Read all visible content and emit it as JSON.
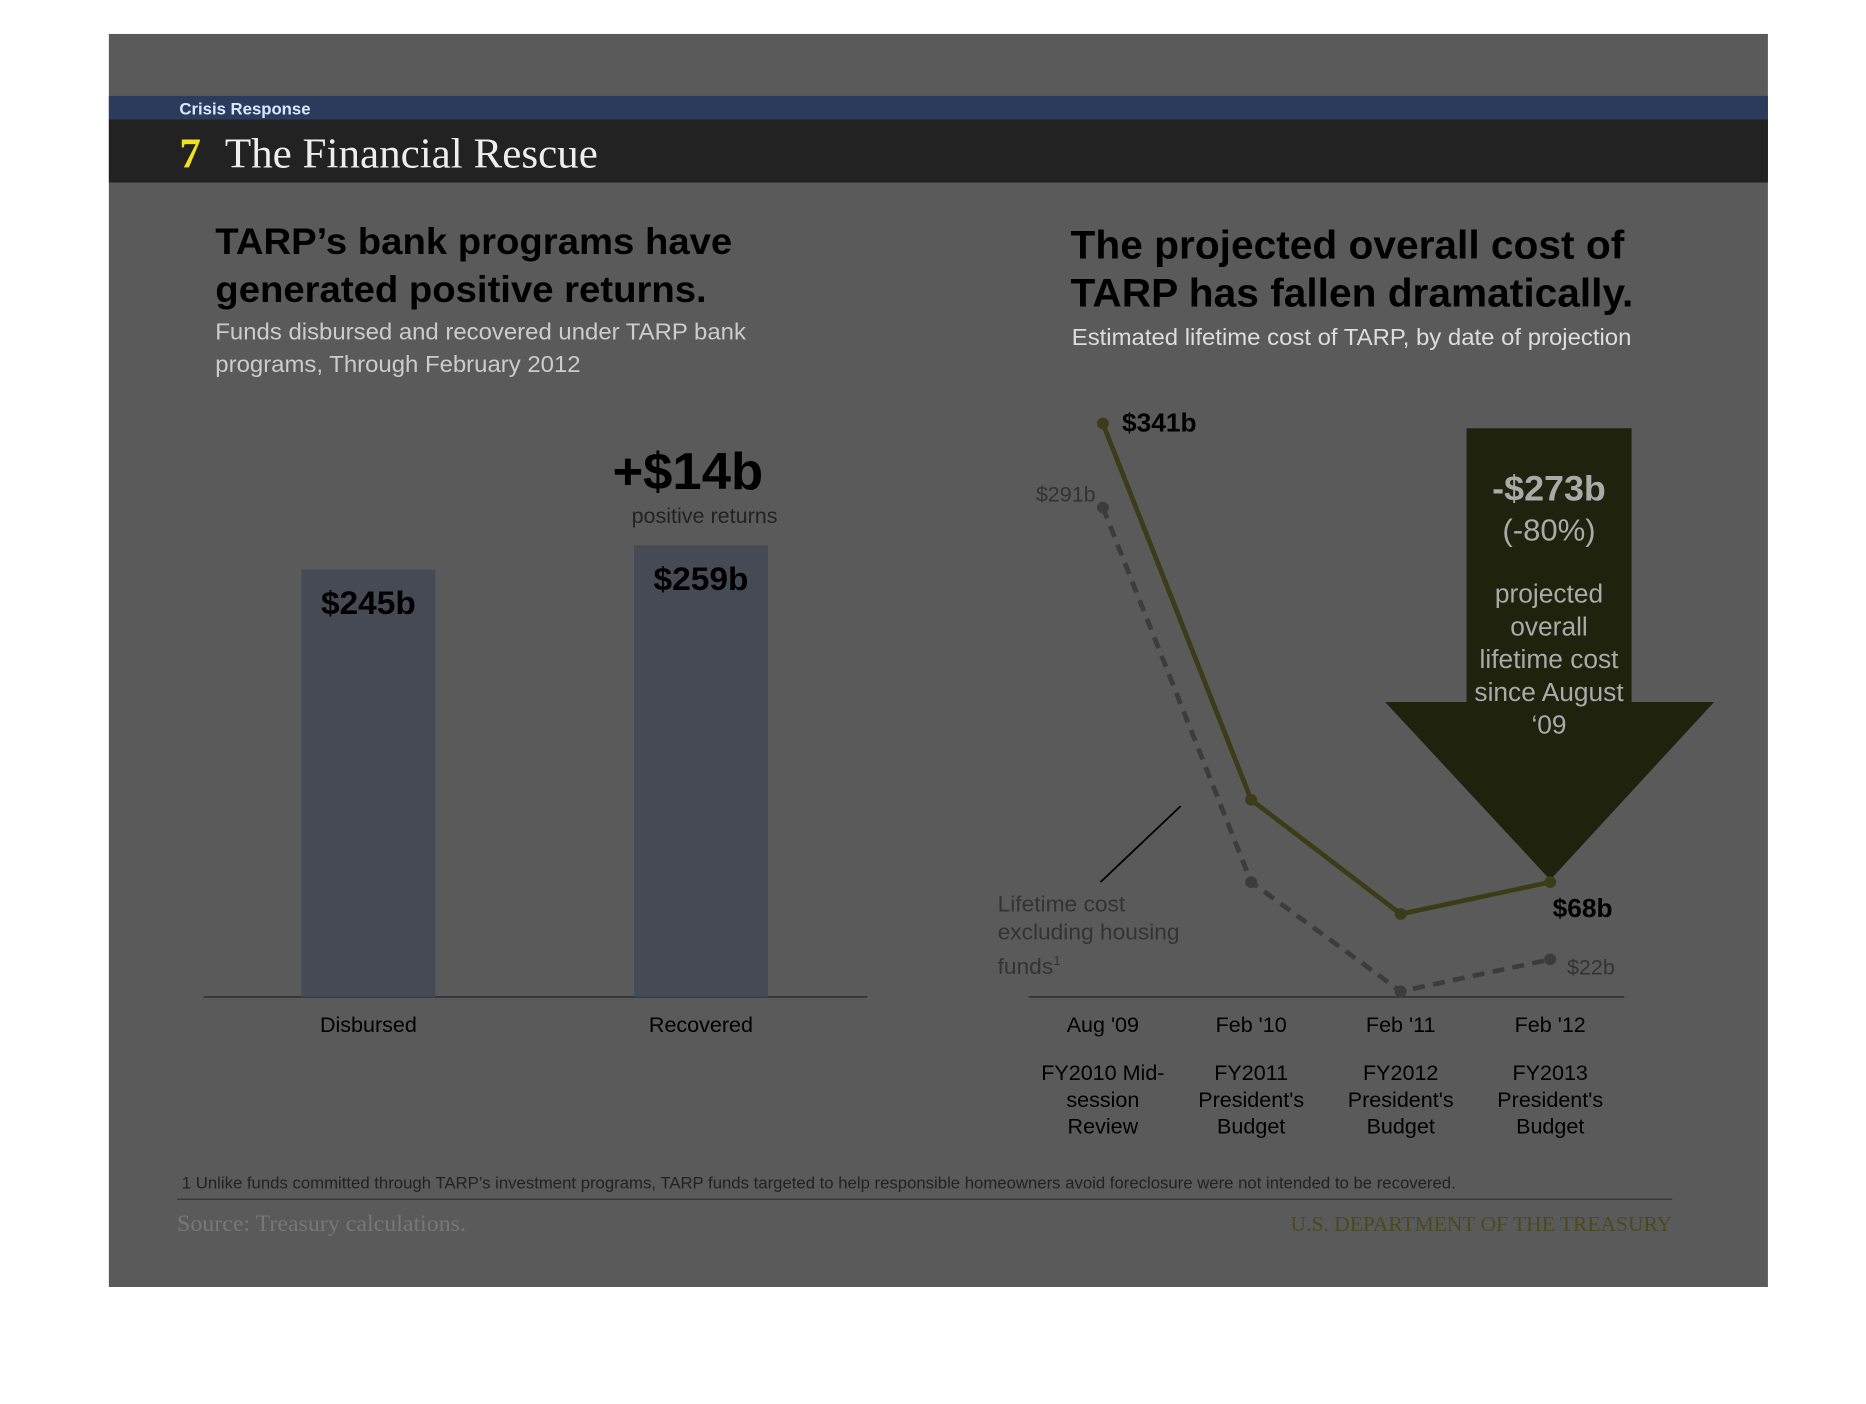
{
  "header": {
    "section": "Crisis Response",
    "number": "7",
    "title": "The Financial Rescue"
  },
  "chart_data": [
    {
      "type": "bar",
      "title": "TARP’s bank programs have generated positive returns.",
      "subtitle": "Funds disbursed and recovered under TARP bank programs, Through February 2012",
      "categories": [
        "Disbursed",
        "Recovered"
      ],
      "values": [
        245,
        259
      ],
      "value_labels": [
        "$245b",
        "$259b"
      ],
      "color": "#464a55",
      "annotation": {
        "value": "+$14b",
        "text": "positive returns"
      }
    },
    {
      "type": "line",
      "title": "The projected overall cost of TARP has fallen dramatically.",
      "subtitle": "Estimated lifetime cost of TARP, by date of projection",
      "categories": [
        "Aug '09",
        "Feb '10",
        "Feb '11",
        "Feb '12"
      ],
      "category_notes": [
        "FY2010 Mid-session Review",
        "FY2011 President's Budget",
        "FY2012 President's Budget",
        "FY2013 President's Budget"
      ],
      "series": [
        {
          "color": "#3a3d18",
          "dashed": false,
          "values": [
            341,
            117,
            49,
            68
          ],
          "value_labels": [
            "$341b",
            null,
            null,
            "$68b"
          ]
        },
        {
          "name": "Lifetime cost excluding housing funds",
          "name_footnote": "1",
          "color": "#3c3c3c",
          "dashed": true,
          "values": [
            291,
            68,
            3,
            22
          ],
          "value_labels": [
            "$291b",
            null,
            null,
            "$22b"
          ]
        }
      ],
      "annotation": {
        "value": "-$273b",
        "percent": "(-80%)",
        "text": "projected overall lifetime cost since August ‘09"
      }
    }
  ],
  "footnote": "1 Unlike funds committed through TARP’s investment programs, TARP funds targeted to help responsible homeowners avoid foreclosure were not intended to be recovered.",
  "source": "Source: Treasury calculations.",
  "publisher": "U.S. DEPARTMENT OF THE TREASURY"
}
